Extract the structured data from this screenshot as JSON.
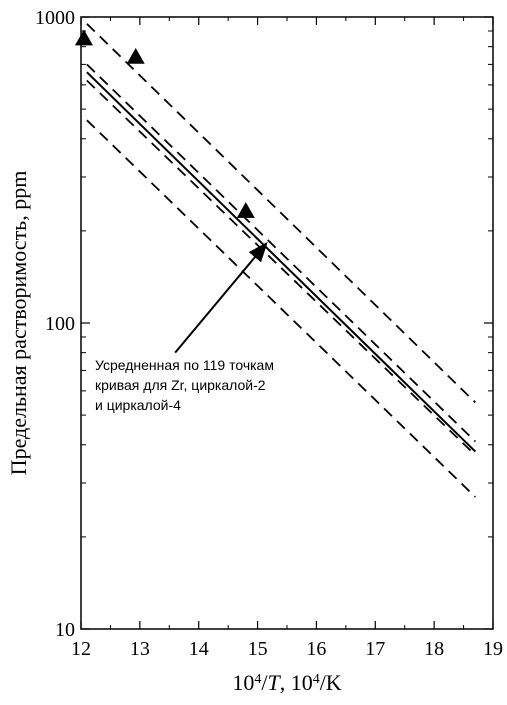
{
  "chart_data": {
    "type": "line",
    "title": "",
    "xlabel": "",
    "ylabel": "Предельная растворимость, ppm",
    "xlabel_parts": {
      "base": "10",
      "sup": "4",
      "slash_var": "/",
      "var": "T",
      "rest": ", 10",
      "sup2": "4",
      "unit": "/K"
    },
    "xlim": [
      12,
      19
    ],
    "ylim": [
      10,
      1000
    ],
    "yscale": "log",
    "x_ticks": [
      "12",
      "13",
      "14",
      "15",
      "16",
      "17",
      "18",
      "19"
    ],
    "y_ticks": [
      {
        "value": 10,
        "label": "10"
      },
      {
        "value": 100,
        "label": "100"
      },
      {
        "value": 1000,
        "label": "1000"
      }
    ],
    "grid": false,
    "series": [
      {
        "style": "solid",
        "x": [
          12.1,
          18.7
        ],
        "y": [
          660,
          38
        ]
      },
      {
        "style": "dashed",
        "x": [
          12.1,
          18.7
        ],
        "y": [
          950,
          55
        ]
      },
      {
        "style": "dashed",
        "x": [
          12.1,
          18.7
        ],
        "y": [
          700,
          41
        ]
      },
      {
        "style": "dashed",
        "x": [
          12.1,
          18.7
        ],
        "y": [
          620,
          37
        ]
      },
      {
        "style": "dashed",
        "x": [
          12.1,
          18.7
        ],
        "y": [
          460,
          27
        ]
      }
    ],
    "markers": {
      "shape": "triangle",
      "points": [
        {
          "x": 12.05,
          "y": 850
        },
        {
          "x": 12.93,
          "y": 740
        },
        {
          "x": 14.8,
          "y": 232
        }
      ]
    },
    "annotation": {
      "lines": [
        "Усредненная по 119 точкам",
        "кривая для Zr, циркалой-2",
        "и циркалой-4"
      ],
      "arrow_from": {
        "x": 13.6,
        "y": 80
      },
      "arrow_to": {
        "x": 15.15,
        "y": 182
      }
    }
  }
}
